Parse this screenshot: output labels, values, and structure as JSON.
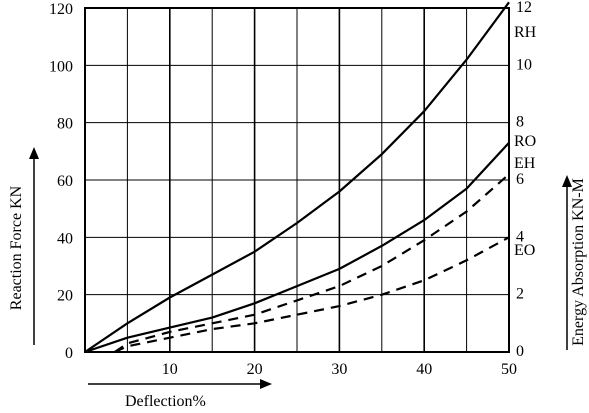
{
  "chart_data": {
    "type": "line",
    "title": "",
    "xlabel": "Deflection%",
    "ylabel_left": "Reaction Force KN",
    "ylabel_right": "Energy Absorption KN-M",
    "xlim": [
      0,
      50
    ],
    "ylim_left": [
      0,
      120
    ],
    "ylim_right": [
      0,
      12
    ],
    "grid": true,
    "x_ticks": [
      10,
      20,
      30,
      40,
      50
    ],
    "y_ticks_left": [
      0,
      20,
      40,
      60,
      80,
      100,
      120
    ],
    "y_ticks_right": [
      0,
      2,
      4,
      6,
      8,
      10,
      12
    ],
    "series": [
      {
        "name": "RH",
        "axis": "left",
        "style": "solid",
        "x": [
          0,
          5,
          10,
          15,
          20,
          25,
          30,
          35,
          40,
          45,
          50
        ],
        "y": [
          0,
          10,
          19,
          27,
          35,
          45,
          56,
          69,
          84,
          102,
          122
        ]
      },
      {
        "name": "RO",
        "axis": "left",
        "style": "solid",
        "x": [
          0,
          5,
          10,
          15,
          20,
          25,
          30,
          35,
          40,
          45,
          50
        ],
        "y": [
          0,
          5,
          8.5,
          12,
          17,
          23,
          29,
          37,
          46,
          57,
          73
        ]
      },
      {
        "name": "EH",
        "axis": "right",
        "style": "dashed",
        "x": [
          3.5,
          5,
          10,
          15,
          20,
          25,
          30,
          35,
          40,
          45,
          50
        ],
        "y": [
          0,
          0.3,
          0.7,
          1.0,
          1.3,
          1.8,
          2.3,
          3.0,
          3.9,
          4.9,
          6.2
        ]
      },
      {
        "name": "EO",
        "axis": "right",
        "style": "dashed",
        "x": [
          3.5,
          5,
          10,
          15,
          20,
          25,
          30,
          35,
          40,
          45,
          50
        ],
        "y": [
          0,
          0.2,
          0.5,
          0.8,
          1.0,
          1.3,
          1.6,
          2.0,
          2.5,
          3.2,
          4.0
        ]
      }
    ]
  }
}
